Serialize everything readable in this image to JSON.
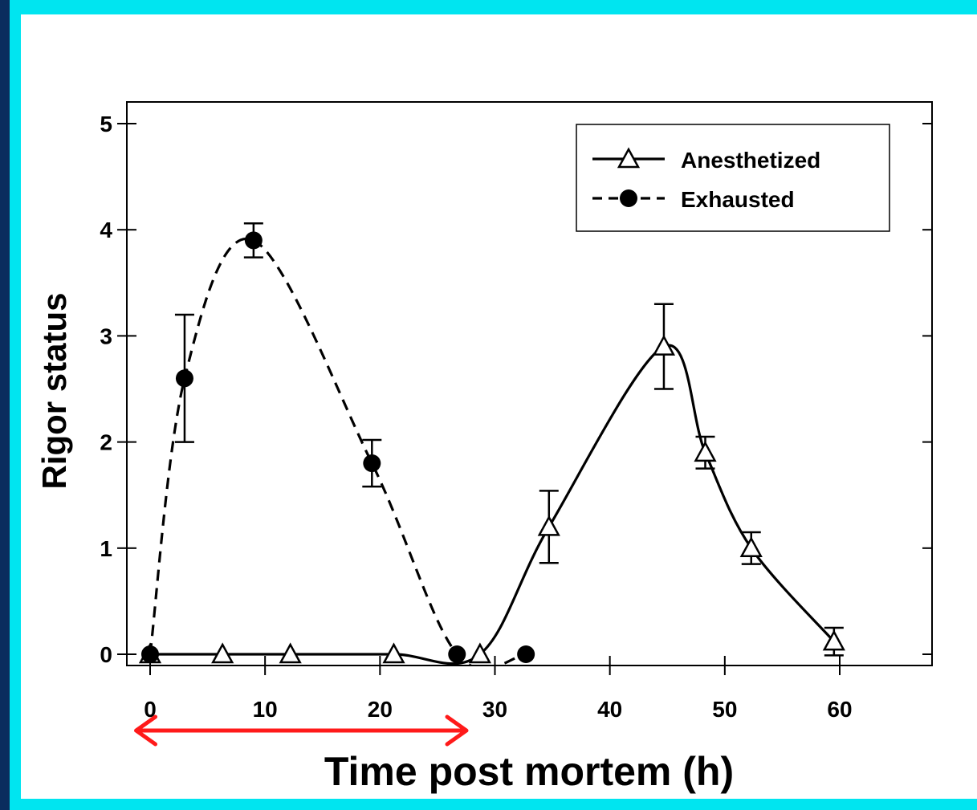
{
  "chart_data": {
    "type": "line",
    "xlabel": "Time post mortem (h)",
    "ylabel": "Rigor status",
    "xlim": [
      -2,
      68
    ],
    "ylim": [
      -0.1,
      5.2
    ],
    "x_ticks": [
      0,
      10,
      20,
      30,
      40,
      50,
      60
    ],
    "y_ticks": [
      0,
      1,
      2,
      3,
      4,
      5
    ],
    "legend_position": "top-right",
    "series": [
      {
        "name": "Anesthetized",
        "marker": "open-triangle",
        "line_style": "solid",
        "x": [
          0,
          6.3,
          12.2,
          21.2,
          28.7,
          34.7,
          44.7,
          48.3,
          52.3,
          59.5
        ],
        "y": [
          0,
          0,
          0,
          0,
          0,
          1.2,
          2.9,
          1.9,
          1.0,
          0.12
        ],
        "error": [
          0,
          0,
          0,
          0,
          0,
          0.34,
          0.4,
          0.15,
          0.15,
          0.13
        ]
      },
      {
        "name": "Exhausted",
        "marker": "filled-circle",
        "line_style": "dashed",
        "x": [
          0,
          3,
          9,
          19.3,
          26.7,
          32.7
        ],
        "y": [
          0,
          2.6,
          3.9,
          1.8,
          0,
          0
        ],
        "error": [
          0,
          0.6,
          0.16,
          0.22,
          0,
          0
        ]
      }
    ],
    "annotation": {
      "type": "double-arrow",
      "color": "#ff1a1a",
      "x_range": [
        -1.5,
        27.8
      ]
    }
  }
}
